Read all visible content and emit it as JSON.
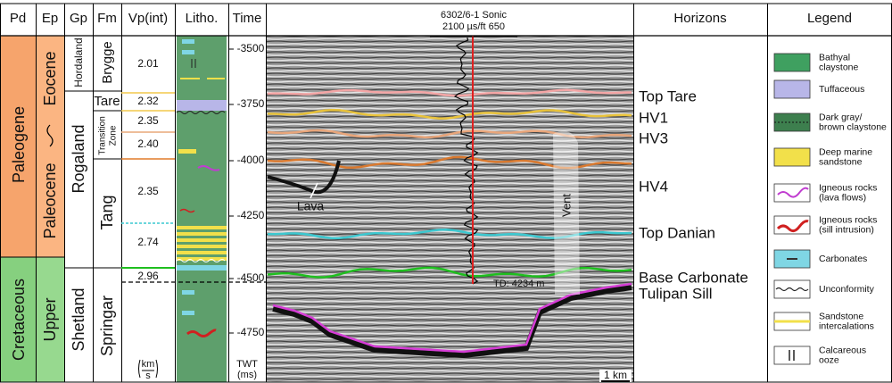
{
  "header": {
    "columns": [
      "Pd",
      "Ep",
      "Gp",
      "Fm",
      "Vp(int)",
      "Litho.",
      "Time",
      "Horizons",
      "Legend"
    ]
  },
  "period": [
    "Paleogene",
    "Cretaceous"
  ],
  "epoch": [
    "Eocene",
    "Paleocene",
    "Upper"
  ],
  "group": [
    "Hordaland",
    "Rogaland",
    "Shetland"
  ],
  "formation": [
    "Brygge",
    "Tare",
    [
      "Transition",
      "Zone"
    ],
    "Tang",
    "Springar"
  ],
  "velocity": {
    "values": [
      "2.01",
      "2.32",
      "2.35",
      "2.40",
      "2.35",
      "2.74",
      "2.96"
    ],
    "unit": [
      "km",
      "s"
    ]
  },
  "time": {
    "ticks": [
      "-3500",
      "-3750",
      "-4000",
      "-4250",
      "-4500",
      "-4750"
    ],
    "axis_label": [
      "TWT",
      "(ms)"
    ]
  },
  "seismic": {
    "well_label": "6302/6-1 Sonic",
    "log_scale": "2100  µs/ft   650",
    "annotations": [
      "Lava",
      "Vent",
      "TD: 4234 m"
    ],
    "scale_bar": "1 km"
  },
  "horizons": [
    "Top Tare",
    "HV1",
    "HV3",
    "HV4",
    "Top Danian",
    "Base Carbonate",
    "Tulipan Sill"
  ],
  "legend": [
    [
      "Bathyal",
      "claystone"
    ],
    [
      "Tuffaceous"
    ],
    [
      "Dark gray/",
      "brown claystone"
    ],
    [
      "Deep marine",
      "sandstone"
    ],
    [
      "Igneous rocks",
      "(lava flows)"
    ],
    [
      "Igneous rocks",
      "(sill intrusion)"
    ],
    [
      "Carbonates"
    ],
    [
      "Unconformity"
    ],
    [
      "Sandstone",
      "intercalations"
    ],
    [
      "Calcareous",
      "ooze"
    ]
  ]
}
